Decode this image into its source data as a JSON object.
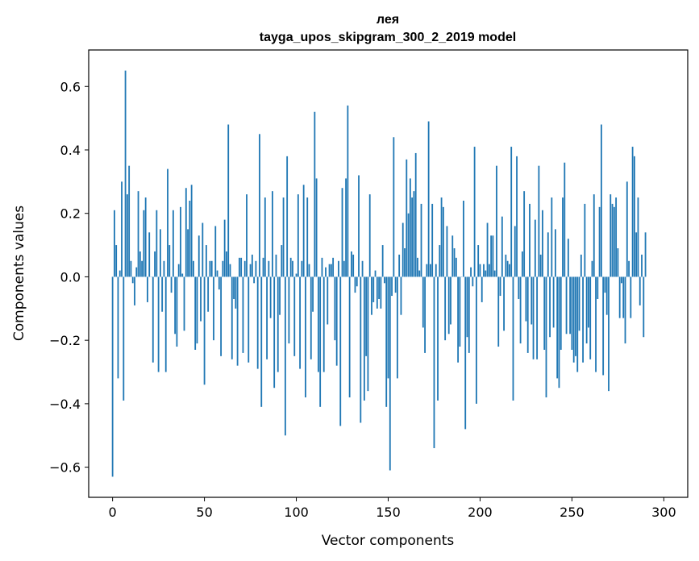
{
  "chart_data": {
    "type": "bar",
    "title": "лея",
    "subtitle": "tayga_upos_skipgram_300_2_2019 model",
    "xlabel": "Vector components",
    "ylabel": "Components values",
    "xlim": [
      -13,
      313
    ],
    "ylim": [
      -0.695,
      0.715
    ],
    "xticks": [
      0,
      50,
      100,
      150,
      200,
      250,
      300
    ],
    "yticks": [
      -0.6,
      -0.4,
      -0.2,
      0.0,
      0.2,
      0.4,
      0.6
    ],
    "ytick_labels": [
      "−0.6",
      "−0.4",
      "−0.2",
      "0.0",
      "0.2",
      "0.4",
      "0.6"
    ],
    "bar_color": "#1f77b4",
    "grid": false,
    "values": [
      -0.63,
      0.21,
      0.1,
      -0.32,
      0.02,
      0.3,
      -0.39,
      0.65,
      0.26,
      0.35,
      0.05,
      -0.02,
      -0.09,
      0.03,
      0.27,
      0.08,
      0.05,
      0.21,
      0.25,
      -0.08,
      0.14,
      0.0,
      -0.27,
      0.08,
      0.21,
      -0.3,
      0.15,
      -0.11,
      0.05,
      -0.3,
      0.34,
      0.1,
      -0.05,
      0.21,
      -0.18,
      -0.22,
      0.04,
      0.22,
      0.01,
      -0.17,
      0.28,
      0.15,
      0.24,
      0.29,
      0.05,
      -0.23,
      -0.21,
      0.13,
      -0.14,
      0.17,
      -0.34,
      0.1,
      -0.11,
      0.05,
      0.05,
      -0.2,
      0.16,
      0.02,
      -0.04,
      -0.25,
      0.05,
      0.18,
      0.08,
      0.48,
      0.04,
      -0.26,
      -0.07,
      -0.1,
      -0.28,
      0.06,
      0.06,
      -0.24,
      0.05,
      0.26,
      -0.27,
      0.04,
      0.07,
      -0.02,
      0.05,
      -0.29,
      0.45,
      -0.41,
      0.06,
      0.25,
      -0.26,
      0.05,
      -0.13,
      0.27,
      -0.35,
      0.07,
      -0.3,
      -0.12,
      0.1,
      0.25,
      -0.5,
      0.38,
      -0.21,
      0.06,
      0.05,
      -0.25,
      0.01,
      0.26,
      -0.29,
      0.05,
      0.29,
      -0.38,
      0.25,
      0.04,
      -0.26,
      -0.11,
      0.52,
      0.31,
      -0.3,
      -0.41,
      0.06,
      -0.3,
      0.03,
      -0.15,
      0.04,
      0.04,
      0.06,
      -0.2,
      -0.28,
      0.05,
      -0.47,
      0.28,
      0.05,
      0.31,
      0.54,
      -0.38,
      0.08,
      0.07,
      -0.05,
      -0.03,
      0.32,
      -0.46,
      0.05,
      -0.39,
      -0.25,
      -0.36,
      0.26,
      -0.12,
      -0.08,
      0.02,
      -0.1,
      -0.07,
      -0.1,
      0.1,
      -0.02,
      -0.41,
      -0.32,
      -0.61,
      -0.06,
      0.44,
      -0.05,
      -0.32,
      0.07,
      -0.12,
      0.17,
      0.09,
      0.37,
      0.2,
      0.31,
      0.25,
      0.27,
      0.39,
      0.06,
      0.02,
      0.23,
      -0.16,
      -0.24,
      0.04,
      0.49,
      0.04,
      0.23,
      -0.54,
      0.04,
      -0.39,
      0.1,
      0.25,
      0.22,
      -0.2,
      0.16,
      -0.18,
      -0.15,
      0.13,
      0.09,
      0.06,
      -0.27,
      -0.22,
      0.0,
      0.24,
      -0.48,
      -0.19,
      -0.24,
      0.03,
      -0.03,
      0.41,
      -0.4,
      0.1,
      0.04,
      -0.08,
      0.04,
      0.02,
      0.17,
      0.04,
      0.13,
      0.13,
      0.02,
      0.35,
      -0.22,
      -0.06,
      0.19,
      -0.17,
      0.07,
      0.05,
      0.04,
      0.41,
      -0.39,
      0.16,
      0.38,
      -0.07,
      -0.21,
      0.08,
      0.27,
      -0.14,
      -0.24,
      0.23,
      -0.15,
      -0.26,
      0.18,
      -0.26,
      0.35,
      0.07,
      0.21,
      -0.23,
      -0.38,
      0.14,
      -0.19,
      0.25,
      -0.16,
      0.15,
      -0.32,
      -0.35,
      -0.23,
      0.25,
      0.36,
      -0.18,
      0.12,
      -0.18,
      -0.23,
      -0.27,
      -0.25,
      -0.3,
      -0.17,
      0.07,
      -0.27,
      0.23,
      -0.21,
      -0.16,
      -0.26,
      0.05,
      0.26,
      -0.3,
      -0.07,
      0.22,
      0.48,
      -0.31,
      -0.05,
      -0.12,
      -0.36,
      0.26,
      0.23,
      0.22,
      0.25,
      0.09,
      -0.13,
      -0.02,
      -0.13,
      -0.21,
      0.3,
      0.05,
      -0.13,
      0.41,
      0.38,
      0.14,
      0.25,
      -0.09,
      0.07,
      -0.19,
      0.14
    ]
  }
}
